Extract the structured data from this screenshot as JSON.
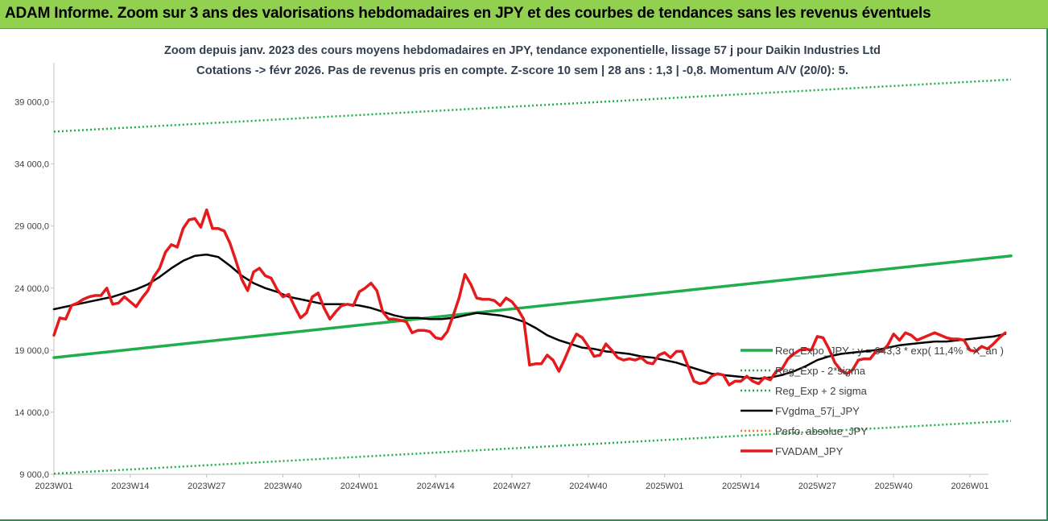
{
  "header": {
    "title": "ADAM Informe. Zoom sur 3 ans des valorisations hebdomadaires en JPY et des courbes de tendances sans les revenus éventuels"
  },
  "chart_data": {
    "type": "line",
    "title_line1": "Zoom depuis janv. 2023 des cours moyens hebdomadaires en JPY, tendance exponentielle, lissage 57 j pour Daikin Industries Ltd",
    "title_line2": "Cotations -> févr 2026. Pas de revenus pris en compte. Z-score 10 sem | 28 ans : 1,3 | -0,8. Momentum A/V (20/0): 5.",
    "ylim": [
      9000,
      41500
    ],
    "y_ticks": [
      9000,
      14000,
      19000,
      24000,
      29000,
      34000,
      39000
    ],
    "y_tick_labels": [
      "9 000,0",
      "14 000,0",
      "19 000,0",
      "24 000,0",
      "29 000,0",
      "34 000,0",
      "39 000,0"
    ],
    "x_range": [
      0,
      156
    ],
    "x_ticks": [
      0,
      13,
      26,
      39,
      52,
      65,
      78,
      91,
      104,
      117,
      130,
      143,
      156
    ],
    "x_tick_labels": [
      "2023W01",
      "2023W14",
      "2023W27",
      "2023W40",
      "2024W01",
      "2024W14",
      "2024W27",
      "2024W40",
      "2025W01",
      "2025W14",
      "2025W27",
      "2025W40",
      "2026W01"
    ],
    "legend_position": "right",
    "grid": false,
    "series": [
      {
        "name": "Reg_Expo_JPY : y = 943,3 * exp( 11,4% * X_an )",
        "color": "#1fae4b",
        "style": "solid-thick",
        "points": [
          [
            0,
            18400
          ],
          [
            163,
            26600
          ]
        ]
      },
      {
        "name": "Reg_Exp - 2*sigma",
        "color": "#1fae4b",
        "style": "dotted",
        "points": [
          [
            0,
            9050
          ],
          [
            163,
            13300
          ]
        ]
      },
      {
        "name": "Reg_Exp + 2 sigma",
        "color": "#1fae4b",
        "style": "dotted",
        "points": [
          [
            0,
            36600
          ],
          [
            163,
            40800
          ]
        ]
      },
      {
        "name": "FVgdma_57j_JPY",
        "color": "#000000",
        "style": "solid",
        "points": [
          [
            0,
            22300
          ],
          [
            2,
            22500
          ],
          [
            4,
            22700
          ],
          [
            6,
            22900
          ],
          [
            8,
            23100
          ],
          [
            10,
            23300
          ],
          [
            12,
            23600
          ],
          [
            14,
            23900
          ],
          [
            16,
            24300
          ],
          [
            18,
            24900
          ],
          [
            20,
            25600
          ],
          [
            22,
            26200
          ],
          [
            24,
            26600
          ],
          [
            26,
            26700
          ],
          [
            28,
            26500
          ],
          [
            30,
            25800
          ],
          [
            32,
            25000
          ],
          [
            34,
            24400
          ],
          [
            36,
            24000
          ],
          [
            38,
            23700
          ],
          [
            40,
            23300
          ],
          [
            42,
            23100
          ],
          [
            44,
            22900
          ],
          [
            46,
            22700
          ],
          [
            48,
            22700
          ],
          [
            50,
            22700
          ],
          [
            52,
            22600
          ],
          [
            54,
            22400
          ],
          [
            56,
            22100
          ],
          [
            58,
            21800
          ],
          [
            60,
            21600
          ],
          [
            62,
            21600
          ],
          [
            64,
            21500
          ],
          [
            66,
            21500
          ],
          [
            68,
            21600
          ],
          [
            70,
            21800
          ],
          [
            72,
            22000
          ],
          [
            74,
            21900
          ],
          [
            76,
            21800
          ],
          [
            78,
            21600
          ],
          [
            80,
            21300
          ],
          [
            82,
            20800
          ],
          [
            84,
            20200
          ],
          [
            86,
            19800
          ],
          [
            88,
            19500
          ],
          [
            90,
            19200
          ],
          [
            92,
            19100
          ],
          [
            94,
            18900
          ],
          [
            96,
            18800
          ],
          [
            98,
            18700
          ],
          [
            100,
            18500
          ],
          [
            102,
            18400
          ],
          [
            104,
            18200
          ],
          [
            106,
            18000
          ],
          [
            108,
            17700
          ],
          [
            110,
            17400
          ],
          [
            112,
            17100
          ],
          [
            114,
            17000
          ],
          [
            116,
            16900
          ],
          [
            118,
            16800
          ],
          [
            120,
            16700
          ],
          [
            122,
            16800
          ],
          [
            124,
            17000
          ],
          [
            126,
            17300
          ],
          [
            128,
            17700
          ],
          [
            130,
            18200
          ],
          [
            132,
            18500
          ],
          [
            134,
            18700
          ],
          [
            136,
            18800
          ],
          [
            138,
            18900
          ],
          [
            140,
            19000
          ],
          [
            142,
            19200
          ],
          [
            144,
            19400
          ],
          [
            146,
            19500
          ],
          [
            148,
            19600
          ],
          [
            150,
            19700
          ],
          [
            152,
            19700
          ],
          [
            154,
            19800
          ],
          [
            156,
            19900
          ],
          [
            158,
            20000
          ],
          [
            160,
            20100
          ],
          [
            162,
            20300
          ]
        ]
      },
      {
        "name": "Perfo. absolue_JPY",
        "color": "#ed7d31",
        "style": "dotted",
        "points": []
      },
      {
        "name": "FVADAM_JPY",
        "color": "#e41a1c",
        "style": "solid-thick",
        "points": [
          [
            0,
            20200
          ],
          [
            1,
            21600
          ],
          [
            2,
            21500
          ],
          [
            3,
            22600
          ],
          [
            4,
            22800
          ],
          [
            5,
            23100
          ],
          [
            6,
            23300
          ],
          [
            7,
            23400
          ],
          [
            8,
            23400
          ],
          [
            9,
            24000
          ],
          [
            10,
            22700
          ],
          [
            11,
            22800
          ],
          [
            12,
            23300
          ],
          [
            13,
            22900
          ],
          [
            14,
            22500
          ],
          [
            15,
            23200
          ],
          [
            16,
            23800
          ],
          [
            17,
            24900
          ],
          [
            18,
            25600
          ],
          [
            19,
            26900
          ],
          [
            20,
            27500
          ],
          [
            21,
            27300
          ],
          [
            22,
            28800
          ],
          [
            23,
            29500
          ],
          [
            24,
            29600
          ],
          [
            25,
            28900
          ],
          [
            26,
            30300
          ],
          [
            27,
            28800
          ],
          [
            28,
            28800
          ],
          [
            29,
            28600
          ],
          [
            30,
            27600
          ],
          [
            31,
            26200
          ],
          [
            32,
            24700
          ],
          [
            33,
            23800
          ],
          [
            34,
            25300
          ],
          [
            35,
            25600
          ],
          [
            36,
            25000
          ],
          [
            37,
            24800
          ],
          [
            38,
            23900
          ],
          [
            39,
            23300
          ],
          [
            40,
            23500
          ],
          [
            41,
            22500
          ],
          [
            42,
            21600
          ],
          [
            43,
            22000
          ],
          [
            44,
            23300
          ],
          [
            45,
            23600
          ],
          [
            46,
            22400
          ],
          [
            47,
            21500
          ],
          [
            48,
            22100
          ],
          [
            49,
            22600
          ],
          [
            50,
            22700
          ],
          [
            51,
            22600
          ],
          [
            52,
            23700
          ],
          [
            53,
            24000
          ],
          [
            54,
            24400
          ],
          [
            55,
            23800
          ],
          [
            56,
            22100
          ],
          [
            57,
            21500
          ],
          [
            58,
            21500
          ],
          [
            59,
            21400
          ],
          [
            60,
            21300
          ],
          [
            61,
            20400
          ],
          [
            62,
            20600
          ],
          [
            63,
            20600
          ],
          [
            64,
            20500
          ],
          [
            65,
            20000
          ],
          [
            66,
            19900
          ],
          [
            67,
            20500
          ],
          [
            68,
            21800
          ],
          [
            69,
            23200
          ],
          [
            70,
            25100
          ],
          [
            71,
            24300
          ],
          [
            72,
            23200
          ],
          [
            73,
            23100
          ],
          [
            74,
            23100
          ],
          [
            75,
            23000
          ],
          [
            76,
            22600
          ],
          [
            77,
            23200
          ],
          [
            78,
            22900
          ],
          [
            79,
            22300
          ],
          [
            80,
            21500
          ],
          [
            81,
            17800
          ],
          [
            82,
            17900
          ],
          [
            83,
            17900
          ],
          [
            84,
            18600
          ],
          [
            85,
            18200
          ],
          [
            86,
            17300
          ],
          [
            87,
            18300
          ],
          [
            88,
            19400
          ],
          [
            89,
            20300
          ],
          [
            90,
            20000
          ],
          [
            91,
            19300
          ],
          [
            92,
            18500
          ],
          [
            93,
            18600
          ],
          [
            94,
            19500
          ],
          [
            95,
            19000
          ],
          [
            96,
            18400
          ],
          [
            97,
            18200
          ],
          [
            98,
            18300
          ],
          [
            99,
            18200
          ],
          [
            100,
            18400
          ],
          [
            101,
            18000
          ],
          [
            102,
            17900
          ],
          [
            103,
            18600
          ],
          [
            104,
            18800
          ],
          [
            105,
            18400
          ],
          [
            106,
            18900
          ],
          [
            107,
            18900
          ],
          [
            108,
            17700
          ],
          [
            109,
            16500
          ],
          [
            110,
            16300
          ],
          [
            111,
            16400
          ],
          [
            112,
            16900
          ],
          [
            113,
            17100
          ],
          [
            114,
            17000
          ],
          [
            115,
            16200
          ],
          [
            116,
            16500
          ],
          [
            117,
            16500
          ],
          [
            118,
            16900
          ],
          [
            119,
            16500
          ],
          [
            120,
            16300
          ],
          [
            121,
            16800
          ],
          [
            122,
            16600
          ],
          [
            123,
            17300
          ],
          [
            124,
            17500
          ],
          [
            125,
            18300
          ],
          [
            126,
            18700
          ],
          [
            127,
            19000
          ],
          [
            128,
            19100
          ],
          [
            129,
            19000
          ],
          [
            130,
            20100
          ],
          [
            131,
            20000
          ],
          [
            132,
            19100
          ],
          [
            133,
            18000
          ],
          [
            134,
            17400
          ],
          [
            135,
            17100
          ],
          [
            136,
            17400
          ],
          [
            137,
            18200
          ],
          [
            138,
            18300
          ],
          [
            139,
            18300
          ],
          [
            140,
            18900
          ],
          [
            141,
            18900
          ],
          [
            142,
            19400
          ],
          [
            143,
            20300
          ],
          [
            144,
            19800
          ],
          [
            145,
            20400
          ],
          [
            146,
            20200
          ],
          [
            147,
            19800
          ],
          [
            148,
            20000
          ],
          [
            149,
            20200
          ],
          [
            150,
            20400
          ],
          [
            151,
            20200
          ],
          [
            152,
            20000
          ],
          [
            153,
            19900
          ],
          [
            154,
            19900
          ],
          [
            155,
            19800
          ],
          [
            156,
            19000
          ],
          [
            157,
            18900
          ],
          [
            158,
            19300
          ],
          [
            159,
            19100
          ],
          [
            160,
            19500
          ],
          [
            161,
            20000
          ],
          [
            162,
            20400
          ]
        ]
      }
    ]
  }
}
